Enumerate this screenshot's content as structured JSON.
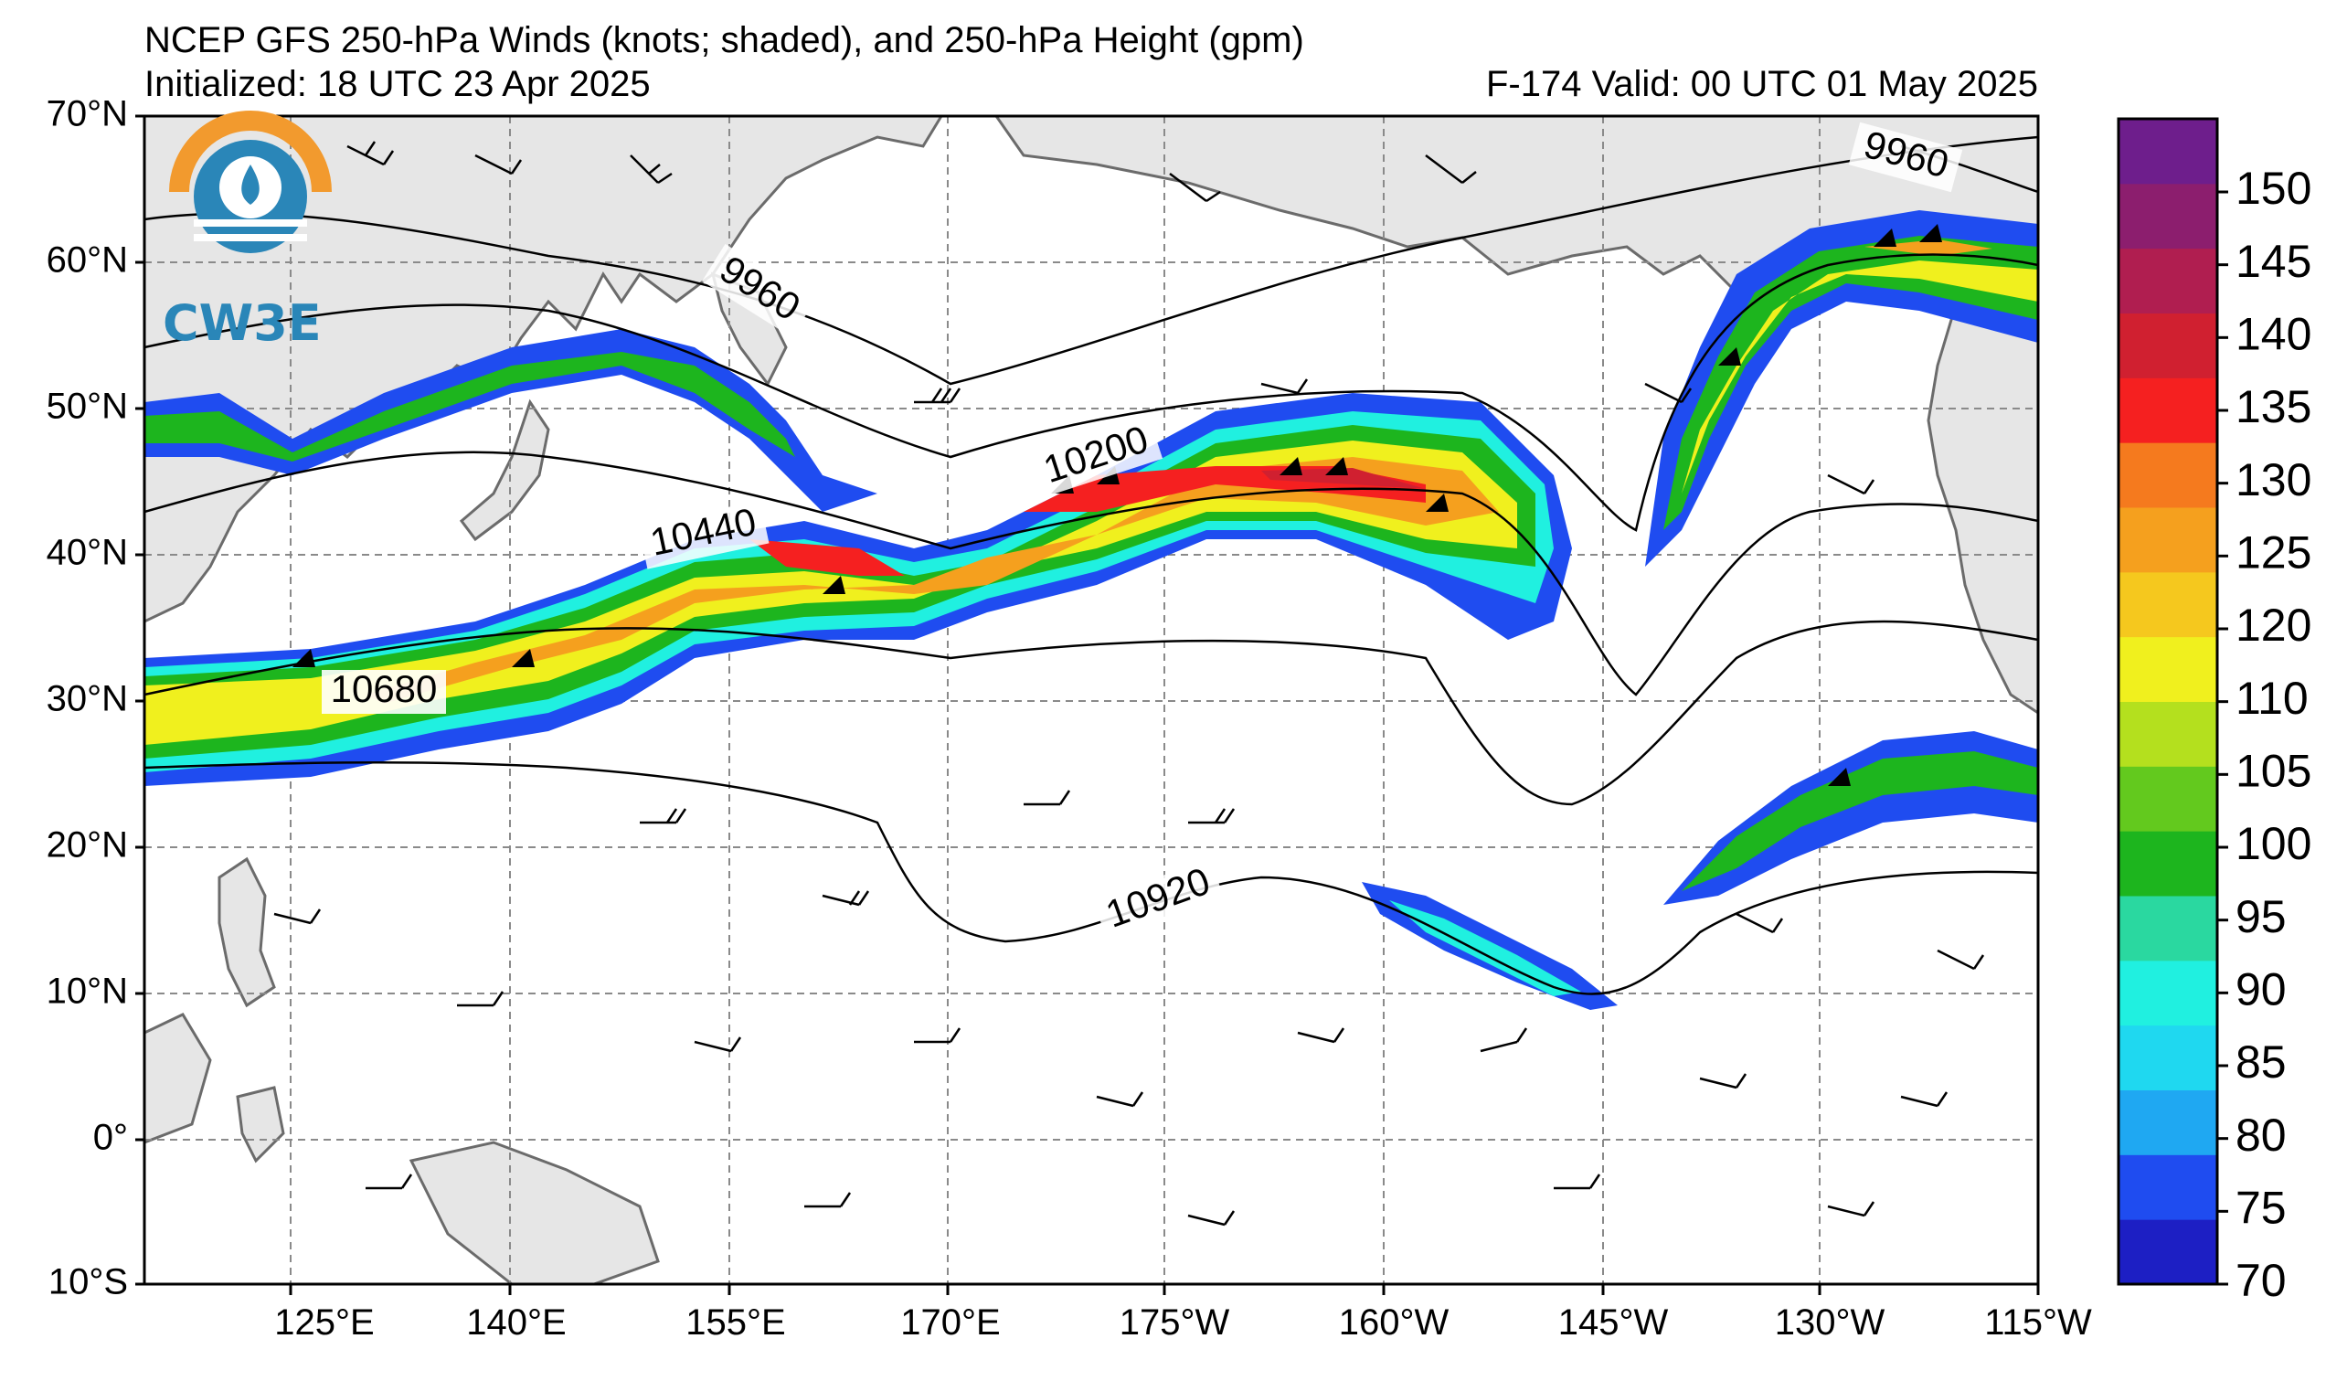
{
  "header": {
    "title": "NCEP GFS 250-hPa Winds (knots; shaded), and 250-hPa Height (gpm)",
    "initialized": "Initialized: 18 UTC 23 Apr 2025",
    "valid": "F-174  Valid: 00 UTC 01 May 2025"
  },
  "logo": {
    "text": "CW3E"
  },
  "axes": {
    "lat_ticks": [
      "70°N",
      "60°N",
      "50°N",
      "40°N",
      "30°N",
      "20°N",
      "10°N",
      "0°",
      "10°S"
    ],
    "lon_ticks": [
      "125°E",
      "140°E",
      "155°E",
      "170°E",
      "175°W",
      "160°W",
      "145°W",
      "130°W",
      "115°W"
    ]
  },
  "colorbar": {
    "labels": [
      "70",
      "75",
      "80",
      "85",
      "90",
      "95",
      "100",
      "105",
      "110",
      "120",
      "125",
      "130",
      "135",
      "140",
      "145",
      "150"
    ],
    "colors": [
      "#1d1fc4",
      "#1f4cf0",
      "#1fa8f2",
      "#1fd8f0",
      "#20f0e0",
      "#2ad8a0",
      "#1db51e",
      "#63c91e",
      "#b4e01e",
      "#f0f01e",
      "#f5c81e",
      "#f5a01e",
      "#f57a1e",
      "#f52020",
      "#d02030",
      "#b01e50",
      "#8c1e6e",
      "#6e1e8c"
    ]
  },
  "contours": {
    "labels": [
      "9960",
      "9960",
      "10200",
      "10440",
      "10680",
      "10920"
    ]
  },
  "colors": {
    "land": "#e6e6e6",
    "coast": "#6b6b6b",
    "grid": "#8a8a8a",
    "logo_orange": "#f29a2e",
    "logo_blue": "#2a86b8"
  }
}
